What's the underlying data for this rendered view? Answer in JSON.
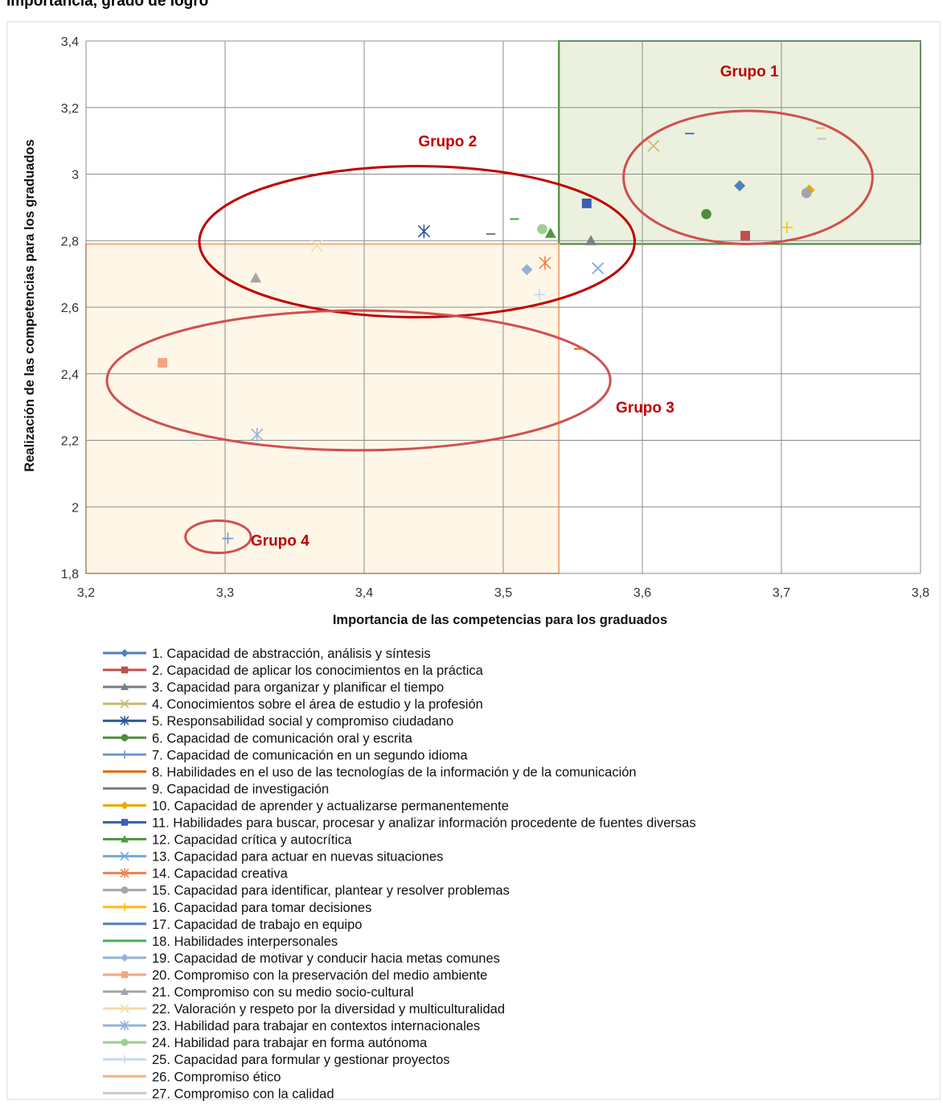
{
  "page_title": "Importancia, grado de logro",
  "chart_data": {
    "type": "scatter",
    "xlabel": "Importancia de las competencias para los graduados",
    "ylabel": "Realización de las competencias para los graduados",
    "xlim": [
      3.2,
      3.8
    ],
    "ylim": [
      1.8,
      3.4
    ],
    "x_ticks": [
      "3,2",
      "3,3",
      "3,4",
      "3,5",
      "3,6",
      "3,7",
      "3,8"
    ],
    "y_ticks": [
      "1,8",
      "2",
      "2,2",
      "2,4",
      "2,6",
      "2,8",
      "3",
      "3,2",
      "3,4"
    ],
    "grid": true,
    "legend_position": "bottom",
    "series": [
      {
        "name": "1. Capacidad de abstracción, análisis y síntesis",
        "color": "#4f81bd",
        "marker": "diamond",
        "x": 3.67,
        "y": 2.965
      },
      {
        "name": "2. Capacidad de aplicar los conocimientos en la práctica",
        "color": "#c0504d",
        "marker": "square",
        "x": 3.674,
        "y": 2.815
      },
      {
        "name": "3. Capacidad para organizar y planificar el tiempo",
        "color": "#7f7f7f",
        "marker": "triangle",
        "x": 3.563,
        "y": 2.8
      },
      {
        "name": "4. Conocimientos sobre el área de estudio y la profesión",
        "color": "#c6b968",
        "marker": "x",
        "x": 3.608,
        "y": 3.085
      },
      {
        "name": "5. Responsabilidad social y compromiso ciudadano",
        "color": "#2e5597",
        "marker": "star",
        "x": 3.443,
        "y": 2.828
      },
      {
        "name": "6. Capacidad de comunicación oral y escrita",
        "color": "#4e8d3c",
        "marker": "circle",
        "x": 3.646,
        "y": 2.88
      },
      {
        "name": "7. Capacidad de comunicación en un segundo idioma",
        "color": "#6b9bd1",
        "marker": "plus",
        "x": 3.302,
        "y": 1.905
      },
      {
        "name": "8. Habilidades en el uso de las tecnologías de la información y de la comunicación",
        "color": "#e46c0a",
        "marker": "dash",
        "x": 3.554,
        "y": 2.475
      },
      {
        "name": "9. Capacidad de investigación",
        "color": "#7f7f7f",
        "marker": "dash",
        "x": 3.491,
        "y": 2.82
      },
      {
        "name": "10. Capacidad de aprender y actualizarse permanentemente",
        "color": "#e6ac00",
        "marker": "diamond",
        "x": 3.72,
        "y": 2.952
      },
      {
        "name": "11. Habilidades para buscar, procesar y analizar información procedente de fuentes diversas",
        "color": "#3a5fb0",
        "marker": "square",
        "x": 3.56,
        "y": 2.912
      },
      {
        "name": "12. Capacidad crítica y autocrítica",
        "color": "#4f9a3e",
        "marker": "triangle",
        "x": 3.534,
        "y": 2.822
      },
      {
        "name": "13. Capacidad para actuar en nuevas situaciones",
        "color": "#6fa8dc",
        "marker": "x",
        "x": 3.568,
        "y": 2.717
      },
      {
        "name": "14. Capacidad creativa",
        "color": "#f08050",
        "marker": "star",
        "x": 3.53,
        "y": 2.733
      },
      {
        "name": "15. Capacidad para identificar, plantear y resolver problemas",
        "color": "#a5a5a5",
        "marker": "circle",
        "x": 3.718,
        "y": 2.943
      },
      {
        "name": "16. Capacidad para tomar decisiones",
        "color": "#ffc000",
        "marker": "plus",
        "x": 3.704,
        "y": 2.84
      },
      {
        "name": "17. Capacidad de trabajo en equipo",
        "color": "#4f81bd",
        "marker": "dash",
        "x": 3.634,
        "y": 3.122
      },
      {
        "name": "18. Habilidades interpersonales",
        "color": "#4caf50",
        "marker": "dash",
        "x": 3.508,
        "y": 2.865
      },
      {
        "name": "19. Capacidad de motivar y conducir hacia metas comunes",
        "color": "#95b3d7",
        "marker": "diamond",
        "x": 3.517,
        "y": 2.713
      },
      {
        "name": "20. Compromiso con la preservación del medio ambiente",
        "color": "#f4a582",
        "marker": "square",
        "x": 3.255,
        "y": 2.433
      },
      {
        "name": "21. Compromiso con su medio socio-cultural",
        "color": "#a5a5a5",
        "marker": "triangle",
        "x": 3.322,
        "y": 2.688
      },
      {
        "name": "22. Valoración y respeto por la diversidad y multiculturalidad",
        "color": "#f7d9a8",
        "marker": "x",
        "x": 3.366,
        "y": 2.785
      },
      {
        "name": "23. Habilidad para trabajar en contextos internacionales",
        "color": "#95b3d7",
        "marker": "star",
        "x": 3.323,
        "y": 2.217
      },
      {
        "name": "24. Habilidad para trabajar en forma autónoma",
        "color": "#9bd08f",
        "marker": "circle",
        "x": 3.528,
        "y": 2.835
      },
      {
        "name": "25. Capacidad para formular y gestionar proyectos",
        "color": "#c5d9f1",
        "marker": "plus",
        "x": 3.526,
        "y": 2.638
      },
      {
        "name": "26. Compromiso ético",
        "color": "#f4b183",
        "marker": "dash",
        "x": 3.728,
        "y": 3.138
      },
      {
        "name": "27. Compromiso con la calidad",
        "color": "#c8c8c8",
        "marker": "dash",
        "x": 3.729,
        "y": 3.106
      }
    ],
    "regions": [
      {
        "name": "region-high",
        "x": [
          3.54,
          3.8
        ],
        "y": [
          2.79,
          3.4
        ],
        "fill": "#ebf1de",
        "stroke": "#4e8d3c"
      },
      {
        "name": "region-low",
        "x": [
          3.2,
          3.54
        ],
        "y": [
          1.8,
          2.79
        ],
        "fill": "#fef6e7",
        "stroke": "#f4b183"
      }
    ],
    "groups": [
      {
        "label": "Grupo 1",
        "cx": 3.676,
        "cy": 2.99,
        "rx": 0.0895,
        "ry": 0.2,
        "label_x": 3.677,
        "label_y": 3.31
      },
      {
        "label": "Grupo 2",
        "cx": 3.438,
        "cy": 2.797,
        "rx": 0.1565,
        "ry": 0.227,
        "label_x": 3.46,
        "label_y": 3.1
      },
      {
        "label": "Grupo 3",
        "cx": 3.396,
        "cy": 2.38,
        "rx": 0.181,
        "ry": 0.21,
        "label_x": 3.602,
        "label_y": 2.3
      },
      {
        "label": "Grupo 4",
        "cx": 3.295,
        "cy": 1.91,
        "rx": 0.0235,
        "ry": 0.0485,
        "label_x": 3.3395,
        "label_y": 1.9
      }
    ]
  }
}
